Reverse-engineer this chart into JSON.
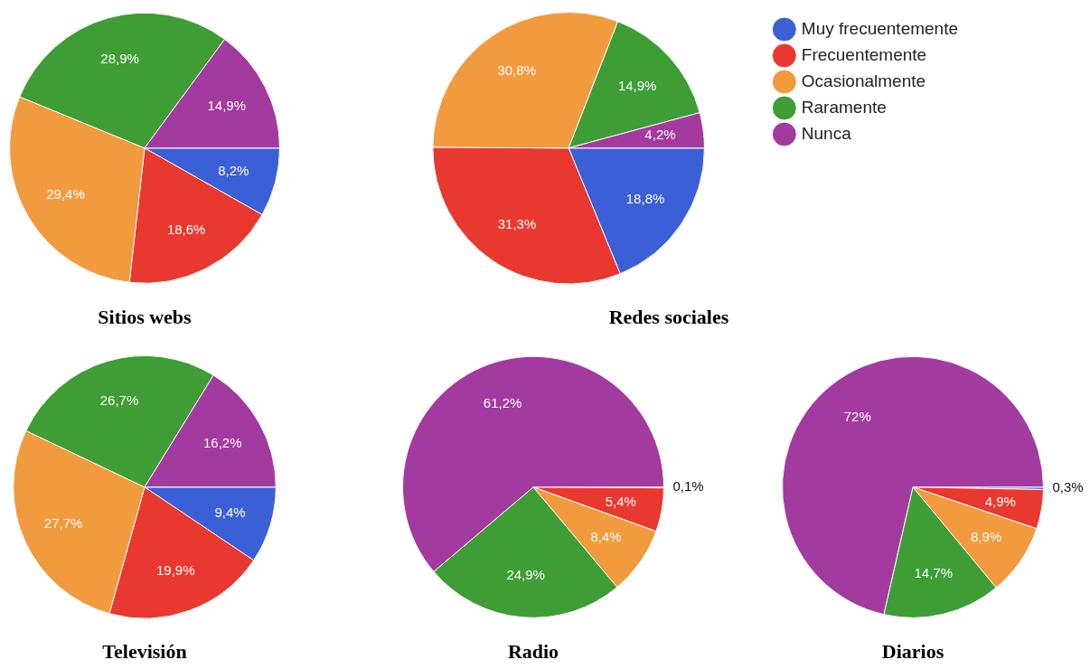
{
  "chart_data": [
    {
      "type": "pie",
      "title": "Sitios webs",
      "categories": [
        null,
        null,
        null,
        null,
        null
      ],
      "values": [
        8.2,
        18.6,
        29.4,
        28.9,
        14.9
      ],
      "colors": [
        "#3b5fd6",
        "#e8382f",
        "#f29a3e",
        "#3e9d35",
        "#a33a9f"
      ],
      "value_labels": [
        "8,2%",
        "18,6%",
        "29,4%",
        "28,9%",
        "14,9%"
      ]
    },
    {
      "type": "pie",
      "title": "Redes sociales",
      "categories": [
        "Muy frecuentemente",
        "Frecuentemente",
        "Ocasionalmente",
        "Raramente",
        "Nunca"
      ],
      "values": [
        18.8,
        31.3,
        30.8,
        14.9,
        4.2
      ],
      "colors": [
        "#3b5fd6",
        "#e8382f",
        "#f29a3e",
        "#3e9d35",
        "#a33a9f"
      ],
      "value_labels": [
        "18,8%",
        "31,3%",
        "30,8%",
        "14,9%",
        "4,2%"
      ],
      "legend": "right"
    },
    {
      "type": "pie",
      "title": "Televisión",
      "categories": [
        null,
        null,
        null,
        null,
        null
      ],
      "values": [
        9.4,
        19.9,
        27.7,
        26.7,
        16.2
      ],
      "colors": [
        "#3b5fd6",
        "#e8382f",
        "#f29a3e",
        "#3e9d35",
        "#a33a9f"
      ],
      "value_labels": [
        "9,4%",
        "19,9%",
        "27,7%",
        "26,7%",
        "16,2%"
      ]
    },
    {
      "type": "pie",
      "title": "Radio",
      "categories": [
        null,
        null,
        null,
        null,
        null
      ],
      "values": [
        0.1,
        5.4,
        8.4,
        24.9,
        61.2
      ],
      "colors": [
        "#3b5fd6",
        "#e8382f",
        "#f29a3e",
        "#3e9d35",
        "#a33a9f"
      ],
      "value_labels": [
        "0,1%",
        "5,4%",
        "8,4%",
        "24,9%",
        "61,2%"
      ]
    },
    {
      "type": "pie",
      "title": "Diarios",
      "categories": [
        null,
        null,
        null,
        null,
        null
      ],
      "values": [
        0.3,
        4.9,
        8.9,
        14.7,
        72
      ],
      "colors": [
        "#3b5fd6",
        "#e8382f",
        "#f29a3e",
        "#3e9d35",
        "#a33a9f"
      ],
      "value_labels": [
        "0,3%",
        "4,9%",
        "8,9%",
        "14,7%",
        "72%"
      ]
    }
  ]
}
